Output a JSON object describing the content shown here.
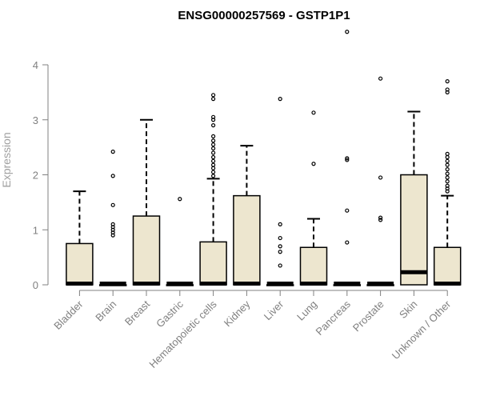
{
  "chart_data": {
    "type": "boxplot",
    "title": "ENSG00000257569 - GSTP1P1",
    "ylabel": "Expression",
    "xlabel": "",
    "ylim": [
      0,
      4.4
    ],
    "yticks": [
      0,
      1,
      2,
      3,
      4
    ],
    "grid": false,
    "box_fill": "#ede6cf",
    "box_stroke": "#000000",
    "categories": [
      "Bladder",
      "Brain",
      "Breast",
      "Gastric",
      "Hematopoietic cells",
      "Kidney",
      "Liver",
      "Lung",
      "Pancreas",
      "Prostate",
      "Skin",
      "Unknown / Other"
    ],
    "boxes": [
      {
        "category": "Bladder",
        "min": 0,
        "q1": 0,
        "median": 0,
        "q3": 0.75,
        "max": 1.7,
        "outliers": []
      },
      {
        "category": "Brain",
        "min": 0,
        "q1": 0,
        "median": 0,
        "q3": 0,
        "max": 0,
        "outliers": [
          0.9,
          0.95,
          1.0,
          1.05,
          1.1,
          1.45,
          1.98,
          2.42
        ]
      },
      {
        "category": "Breast",
        "min": 0,
        "q1": 0,
        "median": 0,
        "q3": 1.25,
        "max": 3.0,
        "outliers": []
      },
      {
        "category": "Gastric",
        "min": 0,
        "q1": 0,
        "median": 0,
        "q3": 0,
        "max": 0,
        "outliers": [
          1.56
        ]
      },
      {
        "category": "Hematopoietic cells",
        "min": 0,
        "q1": 0,
        "median": 0,
        "q3": 0.78,
        "max": 1.93,
        "outliers": [
          1.98,
          2.05,
          2.12,
          2.18,
          2.25,
          2.32,
          2.4,
          2.48,
          2.55,
          2.62,
          2.7,
          2.9,
          3.0,
          3.05,
          3.38,
          3.45
        ]
      },
      {
        "category": "Kidney",
        "min": 0,
        "q1": 0,
        "median": 0,
        "q3": 1.62,
        "max": 2.53,
        "outliers": []
      },
      {
        "category": "Liver",
        "min": 0,
        "q1": 0,
        "median": 0,
        "q3": 0,
        "max": 0,
        "outliers": [
          0.35,
          0.6,
          0.7,
          0.85,
          1.1,
          3.38
        ]
      },
      {
        "category": "Lung",
        "min": 0,
        "q1": 0,
        "median": 0,
        "q3": 0.68,
        "max": 1.2,
        "outliers": [
          2.2,
          3.13
        ]
      },
      {
        "category": "Pancreas",
        "min": 0,
        "q1": 0,
        "median": 0,
        "q3": 0,
        "max": 0,
        "outliers": [
          0.77,
          1.35,
          2.27,
          2.3,
          4.6
        ]
      },
      {
        "category": "Prostate",
        "min": 0,
        "q1": 0,
        "median": 0,
        "q3": 0,
        "max": 0,
        "outliers": [
          1.18,
          1.22,
          1.95,
          3.75
        ]
      },
      {
        "category": "Skin",
        "min": 0,
        "q1": 0,
        "median": 0.23,
        "q3": 2.0,
        "max": 3.15,
        "outliers": []
      },
      {
        "category": "Unknown / Other",
        "min": 0,
        "q1": 0,
        "median": 0,
        "q3": 0.68,
        "max": 1.62,
        "outliers": [
          1.7,
          1.75,
          1.8,
          1.88,
          1.95,
          2.02,
          2.1,
          2.18,
          2.25,
          2.32,
          2.38,
          3.5,
          3.55,
          3.7
        ]
      }
    ]
  }
}
